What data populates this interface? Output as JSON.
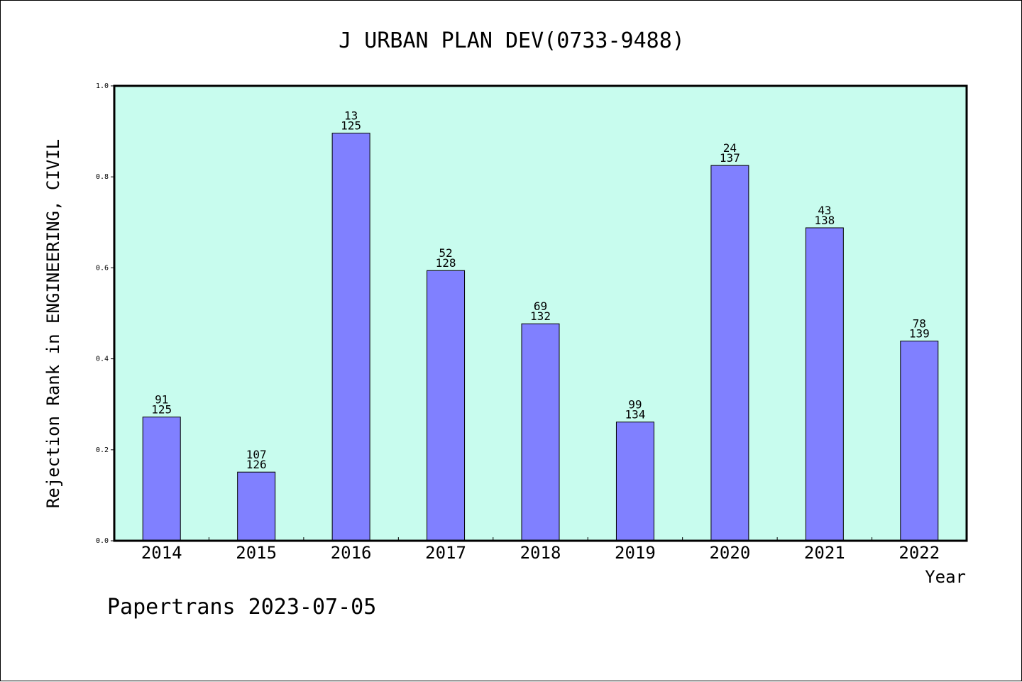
{
  "chart_data": {
    "type": "bar",
    "title": "J URBAN PLAN DEV(0733-9488)",
    "xlabel": "Year",
    "ylabel": "Rejection Rank in ENGINEERING, CIVIL",
    "categories": [
      "2014",
      "2015",
      "2016",
      "2017",
      "2018",
      "2019",
      "2020",
      "2021",
      "2022"
    ],
    "values": [
      0.272,
      0.151,
      0.896,
      0.594,
      0.477,
      0.261,
      0.825,
      0.688,
      0.439
    ],
    "annotations": [
      {
        "rank": "91",
        "total": "125"
      },
      {
        "rank": "107",
        "total": "126"
      },
      {
        "rank": "13",
        "total": "125"
      },
      {
        "rank": "52",
        "total": "128"
      },
      {
        "rank": "69",
        "total": "132"
      },
      {
        "rank": "99",
        "total": "134"
      },
      {
        "rank": "24",
        "total": "137"
      },
      {
        "rank": "43",
        "total": "138"
      },
      {
        "rank": "78",
        "total": "139"
      }
    ],
    "yticks": [
      "0.0",
      "0.2",
      "0.4",
      "0.6",
      "0.8",
      "1.0"
    ],
    "ylim": [
      0,
      1.0
    ],
    "grid": false,
    "colors": {
      "plot_background": "#c8fcee",
      "bar_fill": "#8080ff",
      "bar_stroke": "#000000"
    }
  },
  "footer": "Papertrans 2023-07-05"
}
